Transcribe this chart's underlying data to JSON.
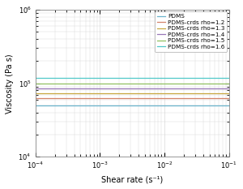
{
  "title": "",
  "xlabel": "Shear rate (s⁻¹)",
  "ylabel": "Viscosity (Pa s)",
  "xlim_log": [
    -4,
    -1
  ],
  "ylim_log": [
    4,
    6
  ],
  "series": [
    {
      "label": "PDMS",
      "color": "#6ab4cc",
      "eta0": 50000,
      "lambda": 0.008,
      "n": 0.85
    },
    {
      "label": "PDMS-crds rho=1.2",
      "color": "#d4836a",
      "eta0": 62000,
      "lambda": 0.006,
      "n": 0.82
    },
    {
      "label": "PDMS-crds rho=1.3",
      "color": "#c8a840",
      "eta0": 74000,
      "lambda": 0.005,
      "n": 0.8
    },
    {
      "label": "PDMS-crds rho=1.4",
      "color": "#9878b8",
      "eta0": 86000,
      "lambda": 0.005,
      "n": 0.78
    },
    {
      "label": "PDMS-crds rho=1.5",
      "color": "#90c060",
      "eta0": 100000,
      "lambda": 0.004,
      "n": 0.76
    },
    {
      "label": "PDMS-crds rho=1.6",
      "color": "#50c8c8",
      "eta0": 118000,
      "lambda": 0.003,
      "n": 0.74
    }
  ],
  "background_color": "#ffffff",
  "grid_color": "#d0d0d0",
  "legend_fontsize": 5.2,
  "axis_fontsize": 7,
  "tick_fontsize": 6
}
